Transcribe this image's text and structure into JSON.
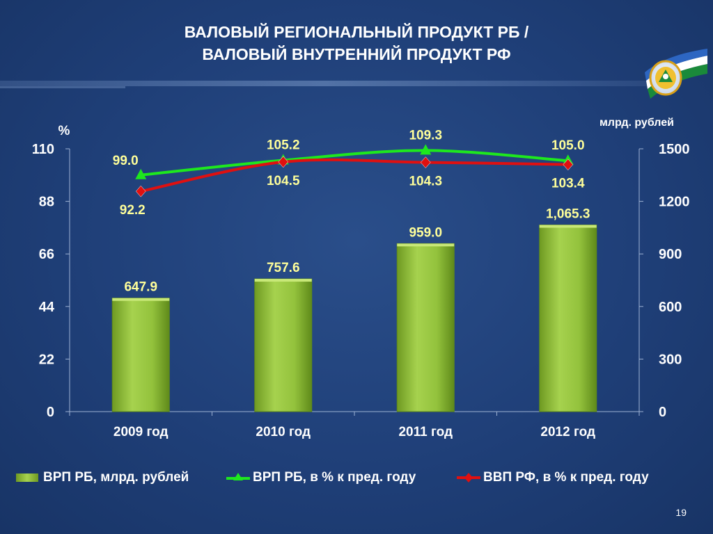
{
  "slide": {
    "title_line1": "ВАЛОВЫЙ РЕГИОНАЛЬНЫЙ ПРОДУКТ РБ /",
    "title_line2": "ВАЛОВЫЙ ВНУТРЕННИЙ ПРОДУКТ РФ",
    "page_number": "19"
  },
  "colors": {
    "background": "#1f3f78",
    "bar": "#8fc03a",
    "green_line": "#1ee81e",
    "red_line": "#e01010",
    "label_yellow": "#ffff9a",
    "axis_text": "#ffffff"
  },
  "chart_data": {
    "type": "bar",
    "categories": [
      "2009 год",
      "2010 год",
      "2011 год",
      "2012 год"
    ],
    "y_left_label": "%",
    "y_right_label": "млрд. рублей",
    "y_left_ticks": [
      "110",
      "88",
      "66",
      "44",
      "22",
      "0"
    ],
    "y_right_ticks": [
      "1500",
      "1200",
      "900",
      "600",
      "300",
      "0"
    ],
    "y_left_range": [
      0,
      110
    ],
    "y_right_range": [
      0,
      1500
    ],
    "series": [
      {
        "name": "ВРП РБ, млрд. рублей",
        "type": "bar",
        "axis": "right",
        "values": [
          647.9,
          757.6,
          959.0,
          1065.3
        ],
        "labels": [
          "647.9",
          "757.6",
          "959.0",
          "1,065.3"
        ]
      },
      {
        "name": "ВРП РБ, в % к пред. году",
        "type": "line",
        "axis": "left",
        "marker": "triangle",
        "values": [
          99.0,
          105.2,
          109.3,
          105.0
        ],
        "labels": [
          "99.0",
          "105.2",
          "109.3",
          "105.0"
        ]
      },
      {
        "name": "ВВП РФ, в % к пред. году",
        "type": "line",
        "axis": "left",
        "marker": "diamond",
        "values": [
          92.2,
          104.5,
          104.3,
          103.4
        ],
        "labels": [
          "92.2",
          "104.5",
          "104.3",
          "103.4"
        ]
      }
    ],
    "grid": false,
    "legend": "bottom"
  }
}
